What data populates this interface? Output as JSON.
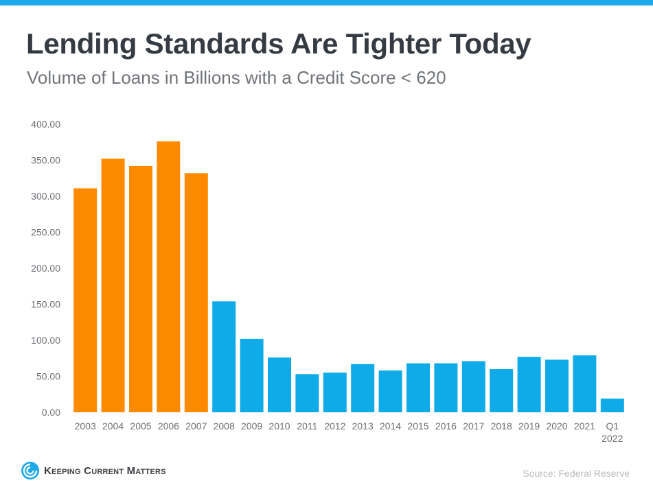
{
  "header": {
    "title": "Lending Standards Are Tighter Today",
    "subtitle": "Volume of Loans in Billions with a Credit Score < 620"
  },
  "footer": {
    "brand": "Keeping Current Matters",
    "source": "Source: Federal Reserve"
  },
  "colors": {
    "accent_bar": "#1da9ea",
    "pre_2008": "#fe8a00",
    "post_2008": "#0eabe8"
  },
  "icons": {
    "logo": "spiral-logo-icon"
  },
  "chart_data": {
    "type": "bar",
    "title": "Lending Standards Are Tighter Today",
    "subtitle": "Volume of Loans in Billions with a Credit Score < 620",
    "categories": [
      "2003",
      "2004",
      "2005",
      "2006",
      "2007",
      "2008",
      "2009",
      "2010",
      "2011",
      "2012",
      "2013",
      "2014",
      "2015",
      "2016",
      "2017",
      "2018",
      "2019",
      "2020",
      "2021",
      "Q1\n2022"
    ],
    "values": [
      311,
      352,
      342,
      376,
      332,
      154,
      102,
      76,
      53,
      55,
      67,
      58,
      68,
      68,
      71,
      60,
      77,
      73,
      79,
      19
    ],
    "bar_colors": [
      "#fe8a00",
      "#fe8a00",
      "#fe8a00",
      "#fe8a00",
      "#fe8a00",
      "#0eabe8",
      "#0eabe8",
      "#0eabe8",
      "#0eabe8",
      "#0eabe8",
      "#0eabe8",
      "#0eabe8",
      "#0eabe8",
      "#0eabe8",
      "#0eabe8",
      "#0eabe8",
      "#0eabe8",
      "#0eabe8",
      "#0eabe8",
      "#0eabe8"
    ],
    "ylim": [
      0,
      400
    ],
    "yticks": [
      "0.00",
      "50.00",
      "100.00",
      "150.00",
      "200.00",
      "250.00",
      "300.00",
      "350.00",
      "400.00"
    ],
    "xlabel": "",
    "ylabel": "",
    "grid": false,
    "legend": "none"
  }
}
